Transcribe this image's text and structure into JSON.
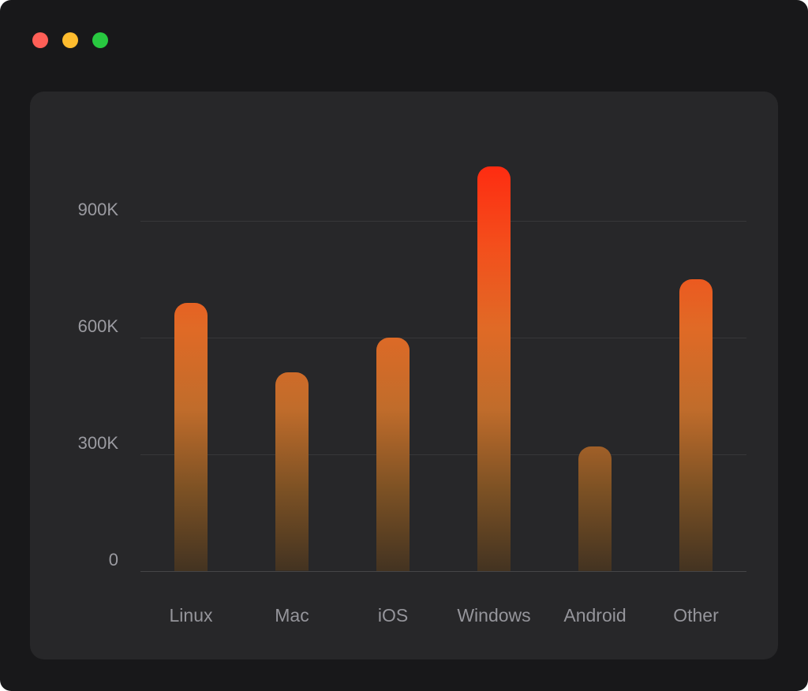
{
  "window": {
    "controls": [
      {
        "name": "close",
        "color": "#ff5f57"
      },
      {
        "name": "minimize",
        "color": "#febc2e"
      },
      {
        "name": "zoom",
        "color": "#28c840"
      }
    ]
  },
  "theme": {
    "window_background": "#18181a",
    "panel_background": "#272729",
    "gridline_color": "rgba(255,255,255,0.08)",
    "axis_label_color": "#9b9ba1",
    "category_label_color": "#95959b"
  },
  "chart_data": {
    "type": "bar",
    "categories": [
      "Linux",
      "Mac",
      "iOS",
      "Windows",
      "Android",
      "Other"
    ],
    "values": [
      690000,
      510000,
      600000,
      1040000,
      320000,
      750000
    ],
    "title": "",
    "xlabel": "",
    "ylabel": "",
    "ylim": [
      0,
      1100000
    ],
    "yticks": [
      {
        "value": 0,
        "label": "0"
      },
      {
        "value": 300000,
        "label": "300K"
      },
      {
        "value": 600000,
        "label": "600K"
      },
      {
        "value": 900000,
        "label": "900K"
      }
    ],
    "grid": true,
    "legend": false,
    "bar_gradient": [
      "#fe2c11",
      "#f34f1c",
      "#e06a26",
      "#c06c2b",
      "#7c5124",
      "#433321"
    ]
  }
}
